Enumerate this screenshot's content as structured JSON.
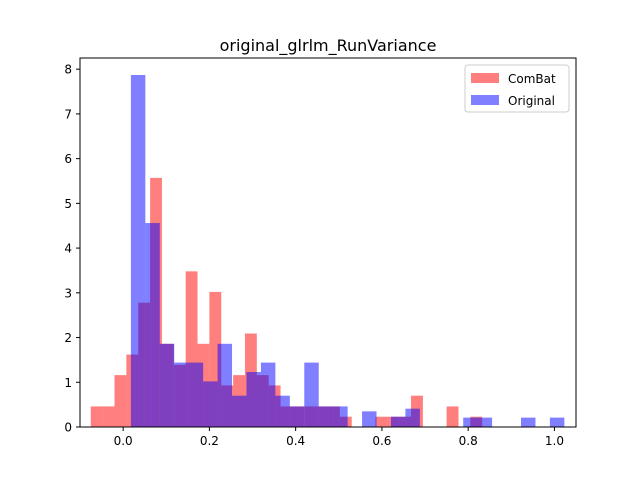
{
  "chart_data": {
    "type": "histogram",
    "title": "original_glrlm_RunVariance",
    "xlabel": "",
    "ylabel": "",
    "xlim": [
      -0.1,
      1.05
    ],
    "ylim": [
      0,
      8.25
    ],
    "xticks": [
      0.0,
      0.2,
      0.4,
      0.6,
      0.8,
      1.0
    ],
    "xtick_labels": [
      "0.0",
      "0.2",
      "0.4",
      "0.6",
      "0.8",
      "1.0"
    ],
    "yticks": [
      0,
      1,
      2,
      3,
      4,
      5,
      6,
      7,
      8
    ],
    "ytick_labels": [
      "0",
      "1",
      "2",
      "3",
      "4",
      "5",
      "6",
      "7",
      "8"
    ],
    "grid": false,
    "legend_position": "upper right",
    "series": [
      {
        "name": "ComBat",
        "color": "#ff0000",
        "alpha": 0.5,
        "bin_width": 0.0275,
        "bins_start": [
          -0.075,
          -0.0475,
          -0.02,
          0.0075,
          0.035,
          0.0625,
          0.09,
          0.1175,
          0.145,
          0.1725,
          0.2,
          0.2275,
          0.255,
          0.2825,
          0.31,
          0.3375,
          0.365,
          0.3925,
          0.42,
          0.4475,
          0.475,
          0.5025,
          0.53,
          0.5575,
          0.585,
          0.6125,
          0.64,
          0.6675,
          0.695,
          0.7225,
          0.75,
          0.7775,
          0.805
        ],
        "values": [
          0.46,
          0.46,
          1.16,
          1.62,
          2.78,
          5.57,
          1.86,
          1.39,
          3.48,
          1.86,
          3.02,
          0.93,
          1.16,
          2.09,
          1.16,
          0.93,
          0.46,
          0.46,
          0.46,
          0.46,
          0.46,
          0.23,
          0.0,
          0.0,
          0.23,
          0.23,
          0.23,
          0.7,
          0.0,
          0.0,
          0.46,
          0.0,
          0.23
        ]
      },
      {
        "name": "Original",
        "color": "#0000ff",
        "alpha": 0.5,
        "bin_width": 0.0335,
        "bins_start": [
          0.018,
          0.0515,
          0.085,
          0.1185,
          0.152,
          0.1855,
          0.219,
          0.2525,
          0.286,
          0.3195,
          0.353,
          0.3865,
          0.42,
          0.4535,
          0.487,
          0.5205,
          0.554,
          0.5875,
          0.621,
          0.6545,
          0.688,
          0.7215,
          0.755,
          0.7885,
          0.822,
          0.8555,
          0.889,
          0.9225,
          0.956,
          0.9895
        ],
        "values": [
          7.87,
          4.56,
          1.86,
          1.44,
          1.44,
          1.02,
          1.86,
          0.7,
          1.23,
          1.44,
          0.7,
          0.46,
          1.44,
          0.46,
          0.46,
          0.0,
          0.35,
          0.0,
          0.23,
          0.41,
          0.0,
          0.0,
          0.0,
          0.21,
          0.21,
          0.0,
          0.0,
          0.21,
          0.0,
          0.21
        ]
      }
    ]
  }
}
